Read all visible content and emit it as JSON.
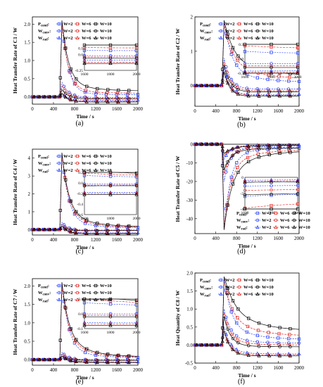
{
  "legend": {
    "rows": [
      "P_cond",
      "W_conv",
      "W_rad"
    ],
    "row_labels": [
      {
        "main": "P",
        "sub": "cond"
      },
      {
        "main": "W",
        "sub": "conv"
      },
      {
        "main": "W",
        "sub": "rad"
      }
    ],
    "entries": [
      "W=2",
      "W=6",
      "W=10"
    ]
  },
  "colors": {
    "W=2": "#1f3bff",
    "W=6": "#e0201b",
    "W=10": "#000000"
  },
  "chart_data": [
    {
      "type": "line",
      "caption": "(a)",
      "xlabel": "Time / s",
      "ylabel": "Heat Transfer Rate of C1 / W",
      "xlim": [
        0,
        2000
      ],
      "ylim": [
        -0.2,
        2.2
      ],
      "xticks": [
        0,
        400,
        800,
        1200,
        1600,
        2000
      ],
      "yticks": [
        0.0,
        0.5,
        1.0,
        1.5,
        2.0
      ],
      "peak": 2.1,
      "peak_x": 560,
      "series": [
        {
          "row": "P_cond",
          "entry": "W=2",
          "values": [
            0.0,
            2.1,
            0.1,
            0.06
          ]
        },
        {
          "row": "P_cond",
          "entry": "W=6",
          "values": [
            0.0,
            2.0,
            0.2,
            0.1
          ]
        },
        {
          "row": "P_cond",
          "entry": "W=10",
          "values": [
            0.0,
            2.1,
            0.42,
            0.16
          ]
        },
        {
          "row": "W_conv",
          "entry": "W=2",
          "values": [
            0.0,
            0.4,
            0.0,
            -0.02
          ]
        },
        {
          "row": "W_conv",
          "entry": "W=6",
          "values": [
            0.0,
            0.3,
            -0.02,
            -0.04
          ]
        },
        {
          "row": "W_conv",
          "entry": "W=10",
          "values": [
            0.0,
            0.2,
            -0.05,
            -0.06
          ]
        },
        {
          "row": "W_rad",
          "entry": "W=2",
          "values": [
            0.0,
            0.1,
            -0.1,
            -0.09
          ]
        },
        {
          "row": "W_rad",
          "entry": "W=6",
          "values": [
            0.0,
            0.1,
            -0.12,
            -0.12
          ]
        },
        {
          "row": "W_rad",
          "entry": "W=10",
          "values": [
            0.0,
            0.1,
            -0.15,
            -0.14
          ]
        }
      ],
      "inset": {
        "xlim": [
          1600,
          2000
        ],
        "ylim": [
          -0.25,
          0.15
        ],
        "xticks": [
          1600,
          1800,
          2000
        ],
        "yticks": [
          -0.25,
          0.0,
          0.1
        ]
      }
    },
    {
      "type": "line",
      "caption": "(b)",
      "xlabel": "Time / s",
      "ylabel": "Heat Transfer Rate of C2 / W",
      "xlim": [
        0,
        2000
      ],
      "ylim": [
        -0.6,
        2.0
      ],
      "xticks": [
        0,
        400,
        800,
        1200,
        1600,
        2000
      ],
      "yticks": [
        0,
        1,
        2
      ],
      "peak": 1.9,
      "peak_x": 560,
      "series": [
        {
          "row": "P_cond",
          "entry": "W=2",
          "values": [
            0.0,
            1.9,
            0.6,
            0.1
          ]
        },
        {
          "row": "P_cond",
          "entry": "W=6",
          "values": [
            0.0,
            1.8,
            0.9,
            0.2
          ]
        },
        {
          "row": "P_cond",
          "entry": "W=10",
          "values": [
            0.0,
            1.9,
            1.1,
            0.3
          ]
        },
        {
          "row": "W_conv",
          "entry": "W=2",
          "values": [
            0.0,
            0.8,
            -0.1,
            -0.1
          ]
        },
        {
          "row": "W_conv",
          "entry": "W=6",
          "values": [
            0.0,
            0.7,
            -0.15,
            -0.15
          ]
        },
        {
          "row": "W_conv",
          "entry": "W=10",
          "values": [
            0.0,
            0.6,
            -0.2,
            -0.18
          ]
        },
        {
          "row": "W_rad",
          "entry": "W=2",
          "values": [
            0.0,
            0.5,
            -0.3,
            -0.25
          ]
        },
        {
          "row": "W_rad",
          "entry": "W=6",
          "values": [
            0.0,
            0.4,
            -0.3,
            -0.28
          ]
        },
        {
          "row": "W_rad",
          "entry": "W=10",
          "values": [
            0.0,
            0.4,
            -0.35,
            -0.3
          ]
        }
      ],
      "inset": {
        "xlim": [
          1600,
          2000
        ],
        "ylim": [
          -0.3,
          0.3
        ],
        "xticks": [
          1600,
          1800,
          2000
        ],
        "yticks": [
          -0.3,
          0.0,
          0.3
        ]
      }
    },
    {
      "type": "line",
      "caption": "(c)",
      "xlabel": "Time / s",
      "ylabel": "Heat Transfer Rate of C4 / W",
      "xlim": [
        0,
        2000
      ],
      "ylim": [
        -0.3,
        4.5
      ],
      "xticks": [
        0,
        400,
        800,
        1200,
        1600,
        2000
      ],
      "yticks": [
        0,
        1,
        2,
        3,
        4
      ],
      "peak": 4.3,
      "peak_x": 560,
      "series": [
        {
          "row": "P_cond",
          "entry": "W=2",
          "values": [
            0.0,
            4.3,
            0.5,
            0.1
          ]
        },
        {
          "row": "P_cond",
          "entry": "W=6",
          "values": [
            0.0,
            4.2,
            0.8,
            0.12
          ]
        },
        {
          "row": "P_cond",
          "entry": "W=10",
          "values": [
            0.0,
            4.3,
            1.0,
            0.15
          ]
        },
        {
          "row": "W_conv",
          "entry": "W=2",
          "values": [
            0.0,
            0.4,
            -0.05,
            -0.02
          ]
        },
        {
          "row": "W_conv",
          "entry": "W=6",
          "values": [
            0.0,
            0.3,
            -0.07,
            -0.04
          ]
        },
        {
          "row": "W_conv",
          "entry": "W=10",
          "values": [
            0.0,
            0.2,
            -0.1,
            -0.05
          ]
        },
        {
          "row": "W_rad",
          "entry": "W=2",
          "values": [
            0.0,
            0.2,
            -0.2,
            -0.18
          ]
        },
        {
          "row": "W_rad",
          "entry": "W=6",
          "values": [
            0.0,
            0.2,
            -0.22,
            -0.2
          ]
        },
        {
          "row": "W_rad",
          "entry": "W=10",
          "values": [
            0.0,
            0.2,
            -0.25,
            -0.22
          ]
        }
      ],
      "inset": {
        "xlim": [
          1600,
          2000
        ],
        "ylim": [
          -0.6,
          0.2
        ],
        "xticks": [
          1600,
          1800,
          2000
        ],
        "yticks": [
          -0.6,
          -0.4,
          -0.2,
          0.0,
          0.2
        ]
      }
    },
    {
      "type": "line",
      "caption": "(d)",
      "xlabel": "Time / s",
      "ylabel": "Heat Transfer Rate of C5 / W",
      "xlim": [
        0,
        2000
      ],
      "ylim": [
        -48,
        0
      ],
      "xticks": [
        0,
        400,
        800,
        1200,
        1600,
        2000
      ],
      "yticks": [
        0,
        -10,
        -20,
        -30,
        -40
      ],
      "peak": -46,
      "peak_x": 560,
      "series": [
        {
          "row": "P_cond",
          "entry": "W=2",
          "values": [
            0.0,
            -46,
            -6,
            -2
          ]
        },
        {
          "row": "P_cond",
          "entry": "W=6",
          "values": [
            0.0,
            -45,
            -12,
            -3
          ]
        },
        {
          "row": "P_cond",
          "entry": "W=10",
          "values": [
            0.0,
            -46,
            -18,
            -3.5
          ]
        },
        {
          "row": "W_conv",
          "entry": "W=2",
          "values": [
            0.0,
            -20,
            -2,
            -1
          ]
        },
        {
          "row": "W_conv",
          "entry": "W=6",
          "values": [
            0.0,
            -16,
            -3,
            -1.5
          ]
        },
        {
          "row": "W_conv",
          "entry": "W=10",
          "values": [
            0.0,
            -14,
            -4,
            -2
          ]
        },
        {
          "row": "W_rad",
          "entry": "W=2",
          "values": [
            0.0,
            -8,
            -1,
            -0.3
          ]
        },
        {
          "row": "W_rad",
          "entry": "W=6",
          "values": [
            0.0,
            -6,
            -1.5,
            -0.4
          ]
        },
        {
          "row": "W_rad",
          "entry": "W=10",
          "values": [
            0.0,
            -5,
            -2,
            -0.5
          ]
        }
      ],
      "inset": {
        "xlim": [
          1600,
          2000
        ],
        "ylim": [
          -4,
          0
        ],
        "xticks": [
          1600,
          1800,
          2000
        ],
        "yticks": [
          -4,
          -2,
          0
        ]
      }
    },
    {
      "type": "line",
      "caption": "(e)",
      "xlabel": "Time / s",
      "ylabel": "Heat Transfer Rate of C7 / W",
      "xlim": [
        0,
        2000
      ],
      "ylim": [
        -0.15,
        2.2
      ],
      "xticks": [
        0,
        400,
        800,
        1200,
        1600,
        2000
      ],
      "yticks": [
        0.0,
        0.5,
        1.0,
        1.5,
        2.0
      ],
      "peak": 2.1,
      "peak_x": 560,
      "series": [
        {
          "row": "P_cond",
          "entry": "W=2",
          "values": [
            0.0,
            2.1,
            0.3,
            0.05
          ]
        },
        {
          "row": "P_cond",
          "entry": "W=6",
          "values": [
            0.0,
            2.0,
            0.5,
            0.06
          ]
        },
        {
          "row": "P_cond",
          "entry": "W=10",
          "values": [
            0.0,
            2.1,
            0.6,
            0.07
          ]
        },
        {
          "row": "W_conv",
          "entry": "W=2",
          "values": [
            0.0,
            0.2,
            0.0,
            0.0
          ]
        },
        {
          "row": "W_conv",
          "entry": "W=6",
          "values": [
            0.0,
            0.15,
            -0.01,
            -0.01
          ]
        },
        {
          "row": "W_conv",
          "entry": "W=10",
          "values": [
            0.0,
            0.1,
            -0.02,
            -0.02
          ]
        },
        {
          "row": "W_rad",
          "entry": "W=2",
          "values": [
            0.0,
            0.1,
            -0.05,
            -0.06
          ]
        },
        {
          "row": "W_rad",
          "entry": "W=6",
          "values": [
            0.0,
            0.1,
            -0.06,
            -0.07
          ]
        },
        {
          "row": "W_rad",
          "entry": "W=10",
          "values": [
            0.0,
            0.1,
            -0.07,
            -0.08
          ]
        }
      ],
      "inset": {
        "xlim": [
          1600,
          2000
        ],
        "ylim": [
          -0.1,
          0.1
        ],
        "xticks": [
          1600,
          1800,
          2000
        ],
        "yticks": [
          -0.1,
          0.0,
          0.1
        ]
      }
    },
    {
      "type": "line",
      "caption": "(f)",
      "xlabel": "Time / s",
      "ylabel": "Heat Quantity of C8 / W",
      "xlim": [
        0,
        2000
      ],
      "ylim": [
        -0.5,
        2.0
      ],
      "xticks": [
        0,
        400,
        800,
        1200,
        1600,
        2000
      ],
      "yticks": [
        -0.5,
        0.0,
        0.5,
        1.0,
        1.5,
        2.0
      ],
      "peak": 1.9,
      "peak_x": 560,
      "series": [
        {
          "row": "P_cond",
          "entry": "W=2",
          "values": [
            0.0,
            1.9,
            0.6,
            0.15
          ]
        },
        {
          "row": "P_cond",
          "entry": "W=6",
          "values": [
            0.0,
            1.8,
            0.9,
            0.25
          ]
        },
        {
          "row": "P_cond",
          "entry": "W=10",
          "values": [
            0.0,
            1.9,
            1.3,
            0.4
          ]
        },
        {
          "row": "W_conv",
          "entry": "W=2",
          "values": [
            0.0,
            1.0,
            0.2,
            0.05
          ]
        },
        {
          "row": "W_conv",
          "entry": "W=6",
          "values": [
            0.0,
            0.9,
            0.1,
            0.0
          ]
        },
        {
          "row": "W_conv",
          "entry": "W=10",
          "values": [
            0.0,
            0.8,
            0.0,
            -0.05
          ]
        },
        {
          "row": "W_rad",
          "entry": "W=2",
          "values": [
            0.0,
            0.5,
            -0.2,
            -0.25
          ]
        },
        {
          "row": "W_rad",
          "entry": "W=6",
          "values": [
            0.0,
            0.4,
            -0.25,
            -0.28
          ]
        },
        {
          "row": "W_rad",
          "entry": "W=10",
          "values": [
            0.0,
            0.4,
            -0.3,
            -0.3
          ]
        }
      ]
    }
  ]
}
